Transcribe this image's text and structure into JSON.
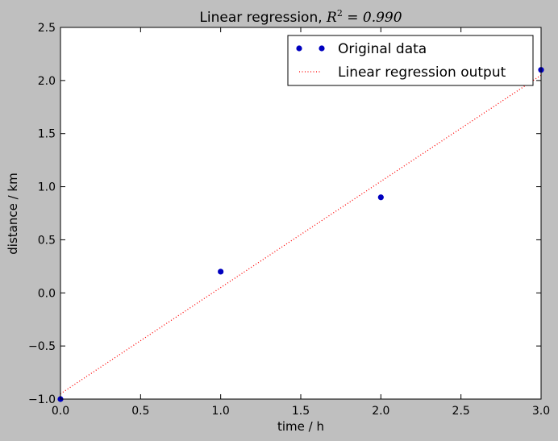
{
  "chart_data": {
    "type": "scatter",
    "title_prefix": "Linear regression, ",
    "title_math_r": "R",
    "title_math_exp": "2",
    "title_math_value": " = 0.990",
    "xlabel": "time / h",
    "ylabel": "distance / km",
    "xlim": [
      0.0,
      3.0
    ],
    "ylim": [
      -1.0,
      2.5
    ],
    "xticks": [
      0.0,
      0.5,
      1.0,
      1.5,
      2.0,
      2.5,
      3.0
    ],
    "xtick_labels": [
      "0.0",
      "0.5",
      "1.0",
      "1.5",
      "2.0",
      "2.5",
      "3.0"
    ],
    "yticks": [
      -1.0,
      -0.5,
      0.0,
      0.5,
      1.0,
      1.5,
      2.0,
      2.5
    ],
    "ytick_labels": [
      "−1.0",
      "−0.5",
      "0.0",
      "0.5",
      "1.0",
      "1.5",
      "2.0",
      "2.5"
    ],
    "grid": false,
    "legend_position": "top-right",
    "series": [
      {
        "name": "Original data",
        "kind": "points",
        "color": "#0000bf",
        "x": [
          0,
          1,
          2,
          3
        ],
        "y": [
          -1.0,
          0.2,
          0.9,
          2.1
        ]
      },
      {
        "name": "Linear regression output",
        "kind": "dotted-line",
        "color": "#ff0000",
        "x": [
          0,
          3
        ],
        "y": [
          -0.95,
          2.05
        ]
      }
    ],
    "background_color": "#bfbfbf",
    "plot_background_color": "#ffffff"
  }
}
